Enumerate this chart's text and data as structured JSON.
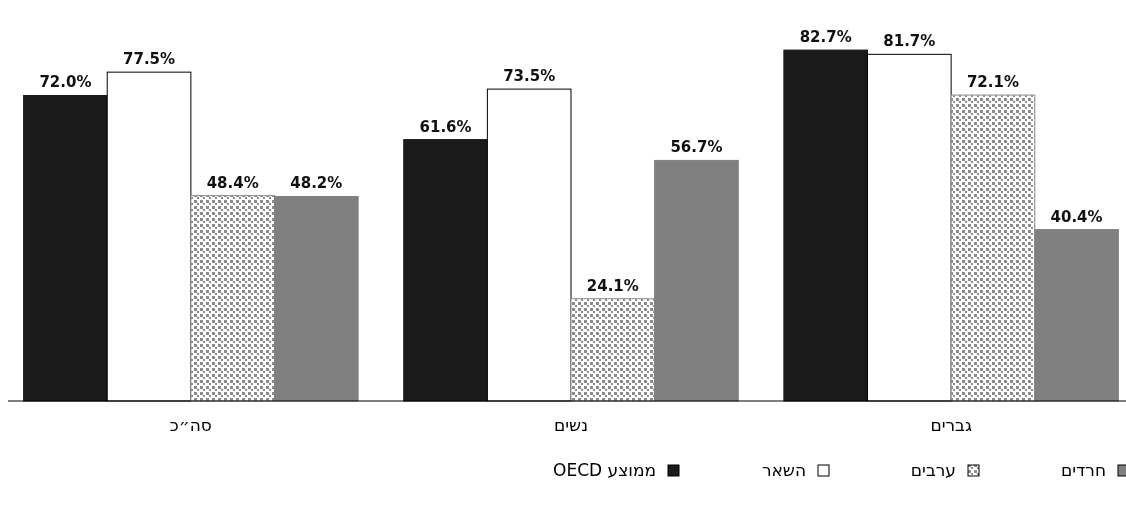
{
  "chart_data": {
    "type": "bar",
    "categories": [
      "סה״כ",
      "נשים",
      "גברים"
    ],
    "series": [
      {
        "name": "ממוצע OECD",
        "color": "#1a1a1a",
        "values": [
          72.0,
          61.6,
          82.7
        ],
        "value_labels": [
          "72.0%",
          "61.6%",
          "82.7%"
        ]
      },
      {
        "name": "השאר",
        "color": "#ffffff",
        "values": [
          77.5,
          73.5,
          81.7
        ],
        "value_labels": [
          "77.5%",
          "73.5%",
          "81.7%"
        ]
      },
      {
        "name": "ערבים",
        "color": "#8c8c8c",
        "values": [
          48.4,
          24.1,
          72.1
        ],
        "value_labels": [
          "48.4%",
          "24.1%",
          "72.1%"
        ]
      },
      {
        "name": "חרדים",
        "color": "#808080",
        "values": [
          48.2,
          56.7,
          40.4
        ],
        "value_labels": [
          "48.2%",
          "56.7%",
          "40.4%"
        ]
      }
    ],
    "legend": "bottom"
  }
}
